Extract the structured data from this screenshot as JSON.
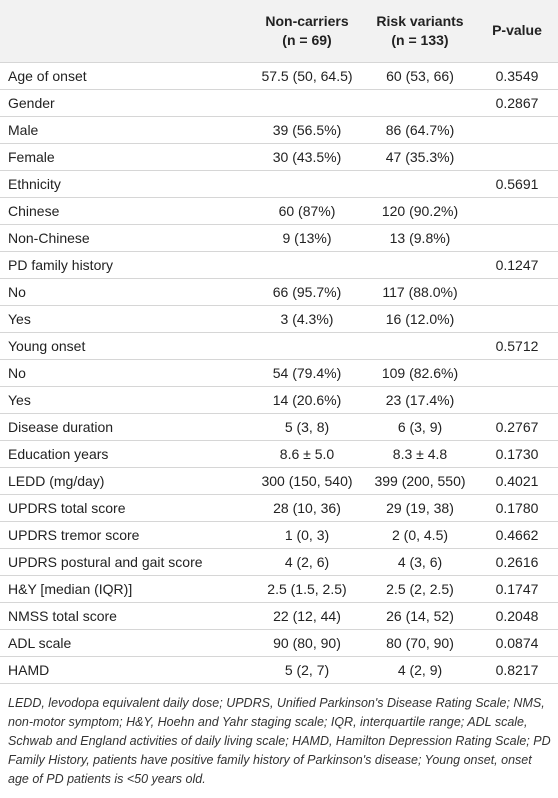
{
  "table": {
    "header": [
      {
        "line1": null,
        "line2": null
      },
      {
        "line1": "Non-carriers",
        "line2": "(n = 69)"
      },
      {
        "line1": "Risk variants",
        "line2": "(n = 133)"
      },
      {
        "line1": "P-value",
        "line2": null
      }
    ],
    "rows": [
      [
        "Age of onset",
        "57.5 (50, 64.5)",
        "60 (53, 66)",
        "0.3549"
      ],
      [
        "Gender",
        null,
        null,
        "0.2867"
      ],
      [
        "Male",
        "39 (56.5%)",
        "86 (64.7%)",
        null
      ],
      [
        "Female",
        "30 (43.5%)",
        "47 (35.3%)",
        null
      ],
      [
        "Ethnicity",
        null,
        null,
        "0.5691"
      ],
      [
        "Chinese",
        "60 (87%)",
        "120 (90.2%)",
        null
      ],
      [
        "Non-Chinese",
        "9 (13%)",
        "13 (9.8%)",
        null
      ],
      [
        "PD family history",
        null,
        null,
        "0.1247"
      ],
      [
        "No",
        "66 (95.7%)",
        "117 (88.0%)",
        null
      ],
      [
        "Yes",
        "3 (4.3%)",
        "16 (12.0%)",
        null
      ],
      [
        "Young onset",
        null,
        null,
        "0.5712"
      ],
      [
        "No",
        "54 (79.4%)",
        "109 (82.6%)",
        null
      ],
      [
        "Yes",
        "14 (20.6%)",
        "23 (17.4%)",
        null
      ],
      [
        "Disease duration",
        "5 (3, 8)",
        "6 (3, 9)",
        "0.2767"
      ],
      [
        "Education years",
        "8.6 ± 5.0",
        "8.3 ± 4.8",
        "0.1730"
      ],
      [
        "LEDD (mg/day)",
        "300 (150, 540)",
        "399 (200, 550)",
        "0.4021"
      ],
      [
        "UPDRS total score",
        "28 (10, 36)",
        "29 (19, 38)",
        "0.1780"
      ],
      [
        "UPDRS tremor score",
        "1 (0, 3)",
        "2 (0, 4.5)",
        "0.4662"
      ],
      [
        "UPDRS postural and gait score",
        "4 (2, 6)",
        "4 (3, 6)",
        "0.2616"
      ],
      [
        "H&Y [median (IQR)]",
        "2.5 (1.5, 2.5)",
        "2.5 (2, 2.5)",
        "0.1747"
      ],
      [
        "NMSS total score",
        "22 (12, 44)",
        "26 (14, 52)",
        "0.2048"
      ],
      [
        "ADL scale",
        "90 (80, 90)",
        "80 (70, 90)",
        "0.0874"
      ],
      [
        "HAMD",
        "5 (2, 7)",
        "4 (2, 9)",
        "0.8217"
      ]
    ]
  },
  "footnote": "LEDD, levodopa equivalent daily dose; UPDRS, Unified Parkinson's Disease Rating Scale; NMS, non-motor symptom; H&Y, Hoehn and Yahr staging scale; IQR, interquartile range; ADL scale, Schwab and England activities of daily living scale; HAMD, Hamilton Depression Rating Scale; PD Family History, patients have positive family history of Parkinson's disease; Young onset, onset age of PD patients is <50 years old."
}
